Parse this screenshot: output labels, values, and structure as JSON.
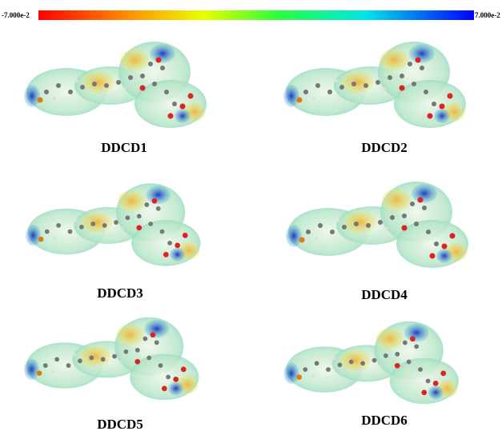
{
  "colorbar": {
    "min_label": "-7.000e-2",
    "max_label": "7.000e-2"
  },
  "panels": [
    {
      "label": "DDCD1"
    },
    {
      "label": "DDCD2"
    },
    {
      "label": "DDCD3"
    },
    {
      "label": "DDCD4"
    },
    {
      "label": "DDCD5"
    },
    {
      "label": "DDCD6"
    }
  ]
}
